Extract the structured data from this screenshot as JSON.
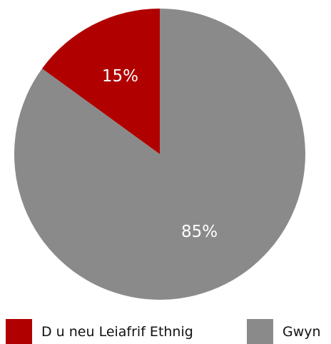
{
  "chart_data": {
    "type": "pie",
    "slices": [
      {
        "label": "D u neu Leiafrif Ethnig",
        "value": 15,
        "display": "15%",
        "color": "#b00000"
      },
      {
        "label": "Gwyn",
        "value": 85,
        "display": "85%",
        "color": "#8a8a8a"
      }
    ],
    "legend": {
      "placement": "bottom"
    }
  }
}
